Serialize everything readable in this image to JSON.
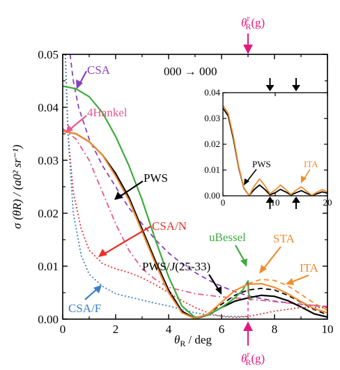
{
  "chart_data": {
    "type": "line",
    "xlabel_symbol": "θ",
    "xlabel_sub": "R",
    "xlabel_unit": "/ deg",
    "ylabel": "σ (θR) / (a0² sr⁻¹)",
    "xlim": [
      0,
      10
    ],
    "ylim": [
      0,
      0.05
    ],
    "x_ticks": [
      "0",
      "2",
      "4",
      "6",
      "8",
      "10"
    ],
    "y_ticks": [
      "0.00",
      "0.01",
      "0.02",
      "0.03",
      "0.04",
      "0.05"
    ],
    "transition_label": "000 → 000",
    "rainbow_marker": {
      "symbol": "θ",
      "sup": "r",
      "sub": "R",
      "arg": "(g)",
      "x": 7.0
    },
    "series": [
      {
        "name": "CSA",
        "color": "#8a3fbd",
        "style": "dashed",
        "points": [
          [
            0.28,
            0.05
          ],
          [
            0.4,
            0.045
          ],
          [
            0.6,
            0.04
          ],
          [
            1,
            0.034
          ],
          [
            1.5,
            0.029
          ],
          [
            2,
            0.025
          ],
          [
            2.5,
            0.021
          ],
          [
            3,
            0.018
          ],
          [
            3.5,
            0.015
          ],
          [
            4,
            0.0125
          ],
          [
            4.5,
            0.0105
          ],
          [
            5,
            0.0088
          ],
          [
            5.5,
            0.0074
          ],
          [
            6,
            0.0062
          ],
          [
            6.5,
            0.0052
          ],
          [
            7,
            0.0044
          ],
          [
            8,
            0.0034
          ],
          [
            9,
            0.0028
          ],
          [
            10,
            0.0023
          ]
        ]
      },
      {
        "name": "4Hankel",
        "color": "#e8578c",
        "style": "dashdot",
        "points": [
          [
            0,
            0.036
          ],
          [
            0.5,
            0.034
          ],
          [
            1,
            0.03
          ],
          [
            1.5,
            0.024
          ],
          [
            2,
            0.018
          ],
          [
            2.5,
            0.013
          ],
          [
            3,
            0.0095
          ],
          [
            3.5,
            0.0075
          ],
          [
            4,
            0.006
          ],
          [
            5,
            0.0048
          ],
          [
            6,
            0.0042
          ],
          [
            7,
            0.0038
          ],
          [
            8,
            0.0033
          ],
          [
            9,
            0.0028
          ],
          [
            10,
            0.0024
          ]
        ]
      },
      {
        "name": "PWS",
        "color": "#000000",
        "style": "solid",
        "points": [
          [
            0,
            0.0355
          ],
          [
            0.5,
            0.035
          ],
          [
            1,
            0.0335
          ],
          [
            1.5,
            0.031
          ],
          [
            2,
            0.0275
          ],
          [
            2.5,
            0.023
          ],
          [
            3,
            0.017
          ],
          [
            3.5,
            0.011
          ],
          [
            4,
            0.0055
          ],
          [
            4.5,
            0.0015
          ],
          [
            5,
            0.0001
          ],
          [
            5.5,
            0.0008
          ],
          [
            6,
            0.0022
          ],
          [
            6.5,
            0.0034
          ],
          [
            7,
            0.004
          ],
          [
            7.5,
            0.0045
          ],
          [
            8,
            0.0043
          ],
          [
            8.5,
            0.0035
          ],
          [
            9,
            0.0023
          ],
          [
            9.5,
            0.001
          ],
          [
            10,
            0.0004
          ]
        ]
      },
      {
        "name": "PWS/J(25-33)",
        "color": "#000000",
        "style": "dashed",
        "points": [
          [
            0,
            0.0355
          ],
          [
            0.5,
            0.035
          ],
          [
            1,
            0.0335
          ],
          [
            1.5,
            0.031
          ],
          [
            2,
            0.0275
          ],
          [
            2.5,
            0.0228
          ],
          [
            3,
            0.0168
          ],
          [
            3.5,
            0.0108
          ],
          [
            4,
            0.0053
          ],
          [
            4.5,
            0.0014
          ],
          [
            5,
            0.0001
          ],
          [
            5.5,
            0.001
          ],
          [
            6,
            0.0028
          ],
          [
            6.5,
            0.0045
          ],
          [
            7,
            0.0055
          ],
          [
            7.5,
            0.0058
          ],
          [
            8,
            0.0055
          ],
          [
            8.5,
            0.0045
          ],
          [
            9,
            0.0032
          ],
          [
            9.5,
            0.0018
          ],
          [
            10,
            0.0008
          ]
        ]
      },
      {
        "name": "CSA/N",
        "color": "#e8312a",
        "style": "dotted",
        "points": [
          [
            0.1,
            0.05
          ],
          [
            0.2,
            0.035
          ],
          [
            0.4,
            0.024
          ],
          [
            0.7,
            0.017
          ],
          [
            1,
            0.013
          ],
          [
            1.5,
            0.0105
          ],
          [
            2,
            0.0095
          ],
          [
            2.5,
            0.0088
          ],
          [
            3,
            0.0078
          ],
          [
            3.5,
            0.0065
          ],
          [
            4,
            0.005
          ],
          [
            4.5,
            0.0035
          ],
          [
            5,
            0.0022
          ],
          [
            5.5,
            0.0012
          ],
          [
            6,
            0.0005
          ],
          [
            6.5,
            0.0003
          ],
          [
            7,
            0.0005
          ],
          [
            8,
            0.0015
          ],
          [
            9,
            0.0022
          ],
          [
            10,
            0.0022
          ]
        ]
      },
      {
        "name": "CSA/F",
        "color": "#3a7fc4",
        "style": "dotted",
        "points": [
          [
            0.1,
            0.05
          ],
          [
            0.2,
            0.035
          ],
          [
            0.4,
            0.02
          ],
          [
            0.7,
            0.012
          ],
          [
            1,
            0.0085
          ],
          [
            1.5,
            0.0062
          ],
          [
            2,
            0.0048
          ],
          [
            2.5,
            0.0042
          ],
          [
            3,
            0.0036
          ],
          [
            3.5,
            0.003
          ],
          [
            4,
            0.0025
          ],
          [
            4.5,
            0.0018
          ],
          [
            5,
            0.0012
          ],
          [
            5.5,
            0.0008
          ],
          [
            6,
            0.0006
          ],
          [
            6.5,
            0.0005
          ],
          [
            6.9,
            0.0005
          ],
          [
            6.92,
            0.0
          ]
        ]
      },
      {
        "name": "uBessel",
        "color": "#3cab3c",
        "style": "solid",
        "points": [
          [
            0,
            0.044
          ],
          [
            0.5,
            0.0435
          ],
          [
            1,
            0.042
          ],
          [
            1.5,
            0.039
          ],
          [
            2,
            0.0345
          ],
          [
            2.5,
            0.029
          ],
          [
            3,
            0.0225
          ],
          [
            3.5,
            0.015
          ],
          [
            4,
            0.008
          ],
          [
            4.5,
            0.0025
          ],
          [
            5,
            0.0003
          ],
          [
            5.5,
            0.0008
          ],
          [
            6,
            0.0022
          ],
          [
            6.5,
            0.004
          ],
          [
            6.8,
            0.0055
          ],
          [
            6.95,
            0.0068
          ],
          [
            7.0,
            0.0072
          ],
          [
            7.02,
            0.005
          ],
          [
            7.1,
            0.0035
          ]
        ]
      },
      {
        "name": "STA",
        "color": "#f08c2e",
        "style": "solid",
        "points": [
          [
            0,
            0.0355
          ],
          [
            0.5,
            0.035
          ],
          [
            1,
            0.0335
          ],
          [
            1.5,
            0.031
          ],
          [
            2,
            0.027
          ],
          [
            2.5,
            0.0225
          ],
          [
            3,
            0.0165
          ],
          [
            3.5,
            0.0105
          ],
          [
            4,
            0.005
          ],
          [
            4.5,
            0.0012
          ],
          [
            5,
            0.0001
          ],
          [
            5.5,
            0.001
          ],
          [
            6,
            0.0032
          ],
          [
            6.5,
            0.0054
          ],
          [
            7,
            0.0066
          ],
          [
            7.5,
            0.0067
          ],
          [
            8,
            0.006
          ],
          [
            8.5,
            0.0048
          ],
          [
            9,
            0.0033
          ],
          [
            9.5,
            0.002
          ],
          [
            10,
            0.0012
          ]
        ]
      },
      {
        "name": "ITA",
        "color": "#f08c2e",
        "style": "dashed",
        "points": [
          [
            7,
            0.0067
          ],
          [
            7.5,
            0.0075
          ],
          [
            8,
            0.0073
          ],
          [
            8.5,
            0.0063
          ],
          [
            9,
            0.0047
          ],
          [
            9.5,
            0.003
          ],
          [
            10,
            0.0017
          ]
        ]
      }
    ],
    "inset": {
      "xlim": [
        0,
        20
      ],
      "ylim": [
        0,
        0.04
      ],
      "x_ticks": [
        "0",
        "10",
        "20"
      ],
      "y_ticks": [
        "0.00",
        "0.01",
        "0.02",
        "0.03",
        "0.04"
      ],
      "labels": [
        "PWS",
        "ITA"
      ],
      "series": [
        {
          "name": "PWS",
          "color": "#000000",
          "points": [
            [
              0,
              0.034
            ],
            [
              1,
              0.031
            ],
            [
              2,
              0.022
            ],
            [
              3,
              0.011
            ],
            [
              4,
              0.003
            ],
            [
              5,
              0.0001
            ],
            [
              6,
              0.0025
            ],
            [
              7,
              0.0042
            ],
            [
              8,
              0.0025
            ],
            [
              9,
              0.0004
            ],
            [
              10,
              0.0012
            ],
            [
              11,
              0.0025
            ],
            [
              12,
              0.0015
            ],
            [
              13,
              0.0003
            ],
            [
              14,
              0.0012
            ],
            [
              15,
              0.002
            ],
            [
              16,
              0.001
            ],
            [
              17,
              0.0001
            ],
            [
              18,
              0.0008
            ],
            [
              19,
              0.0015
            ],
            [
              20,
              0.001
            ]
          ]
        },
        {
          "name": "ITA",
          "color": "#f08c2e",
          "points": [
            [
              0,
              0.035
            ],
            [
              1,
              0.032
            ],
            [
              2,
              0.023
            ],
            [
              3,
              0.0115
            ],
            [
              4,
              0.0032
            ],
            [
              5,
              0.0001
            ],
            [
              6,
              0.0038
            ],
            [
              7,
              0.0065
            ],
            [
              8,
              0.004
            ],
            [
              9,
              0.0008
            ],
            [
              10,
              0.0022
            ],
            [
              11,
              0.0042
            ],
            [
              12,
              0.0025
            ],
            [
              13,
              0.0005
            ],
            [
              14,
              0.0022
            ],
            [
              15,
              0.0035
            ],
            [
              16,
              0.0018
            ],
            [
              17,
              0.0002
            ],
            [
              18,
              0.0014
            ],
            [
              19,
              0.0024
            ],
            [
              20,
              0.0015
            ]
          ]
        }
      ],
      "arrows_down": [
        9,
        14
      ],
      "arrows_up": [
        9,
        14
      ]
    }
  }
}
